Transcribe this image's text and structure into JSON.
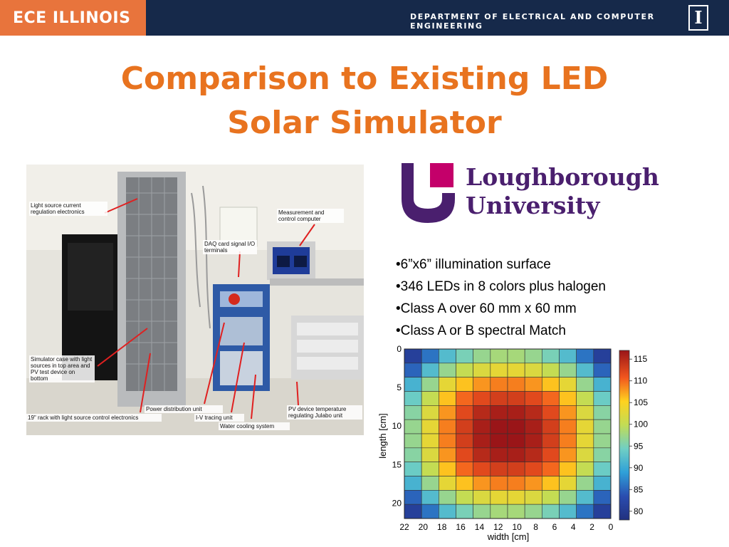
{
  "header": {
    "brand": "ECE ILLINOIS",
    "department": "DEPARTMENT OF ELECTRICAL AND COMPUTER ENGINEERING",
    "logo_letter": "I"
  },
  "title": {
    "line1": "Comparison to Existing LED",
    "line2": "Solar Simulator"
  },
  "photo": {
    "labels": [
      "Light source current regulation electronics",
      "Measurement and control computer",
      "DAQ card signal I/O terminals",
      "Simulator case with light sources in top area and PV test device on bottom",
      "Power distribution unit",
      "19\" rack with light source control electronics",
      "I-V tracing unit",
      "Water cooling system",
      "PV device temperature regulating Julabo unit"
    ]
  },
  "logo": {
    "line1": "Loughborough",
    "line2": "University",
    "colors": {
      "purple": "#4a1f6e",
      "magenta": "#c4006a"
    }
  },
  "bullets": [
    "•6”x6” illumination surface",
    "•346 LEDs in 8 colors plus halogen",
    "•Class A over 60 mm x 60 mm",
    "•Class A or B spectral Match"
  ],
  "chart_data": {
    "type": "heatmap",
    "xlabel": "width [cm]",
    "ylabel": "length [cm]",
    "x_ticks": [
      "22",
      "20",
      "18",
      "16",
      "14",
      "12",
      "10",
      "8",
      "6",
      "4",
      "2",
      "0"
    ],
    "y_ticks": [
      "0",
      "5",
      "10",
      "15",
      "20"
    ],
    "colorbar_ticks": [
      "115",
      "110",
      "105",
      "100",
      "95",
      "90",
      "85",
      "80"
    ],
    "colorbar_range": [
      78,
      117
    ],
    "values": [
      [
        81,
        86,
        92,
        95,
        97,
        98,
        98,
        97,
        95,
        92,
        86,
        81
      ],
      [
        85,
        92,
        97,
        100,
        102,
        103,
        103,
        102,
        100,
        97,
        92,
        85
      ],
      [
        91,
        97,
        103,
        106,
        108,
        109,
        109,
        108,
        106,
        103,
        97,
        91
      ],
      [
        94,
        100,
        106,
        110,
        112,
        113,
        113,
        112,
        110,
        106,
        100,
        94
      ],
      [
        96,
        102,
        108,
        112,
        115,
        116,
        116,
        115,
        112,
        108,
        102,
        96
      ],
      [
        97,
        103,
        109,
        113,
        116,
        117,
        117,
        116,
        113,
        109,
        103,
        97
      ],
      [
        97,
        103,
        109,
        113,
        116,
        117,
        117,
        116,
        113,
        109,
        103,
        97
      ],
      [
        96,
        102,
        108,
        112,
        115,
        116,
        116,
        115,
        112,
        108,
        102,
        96
      ],
      [
        94,
        100,
        106,
        110,
        112,
        113,
        113,
        112,
        110,
        106,
        100,
        94
      ],
      [
        91,
        97,
        103,
        106,
        108,
        109,
        109,
        108,
        106,
        103,
        97,
        91
      ],
      [
        85,
        92,
        97,
        100,
        102,
        103,
        103,
        102,
        100,
        97,
        92,
        85
      ],
      [
        81,
        86,
        92,
        95,
        97,
        98,
        98,
        97,
        95,
        92,
        86,
        81
      ]
    ]
  }
}
